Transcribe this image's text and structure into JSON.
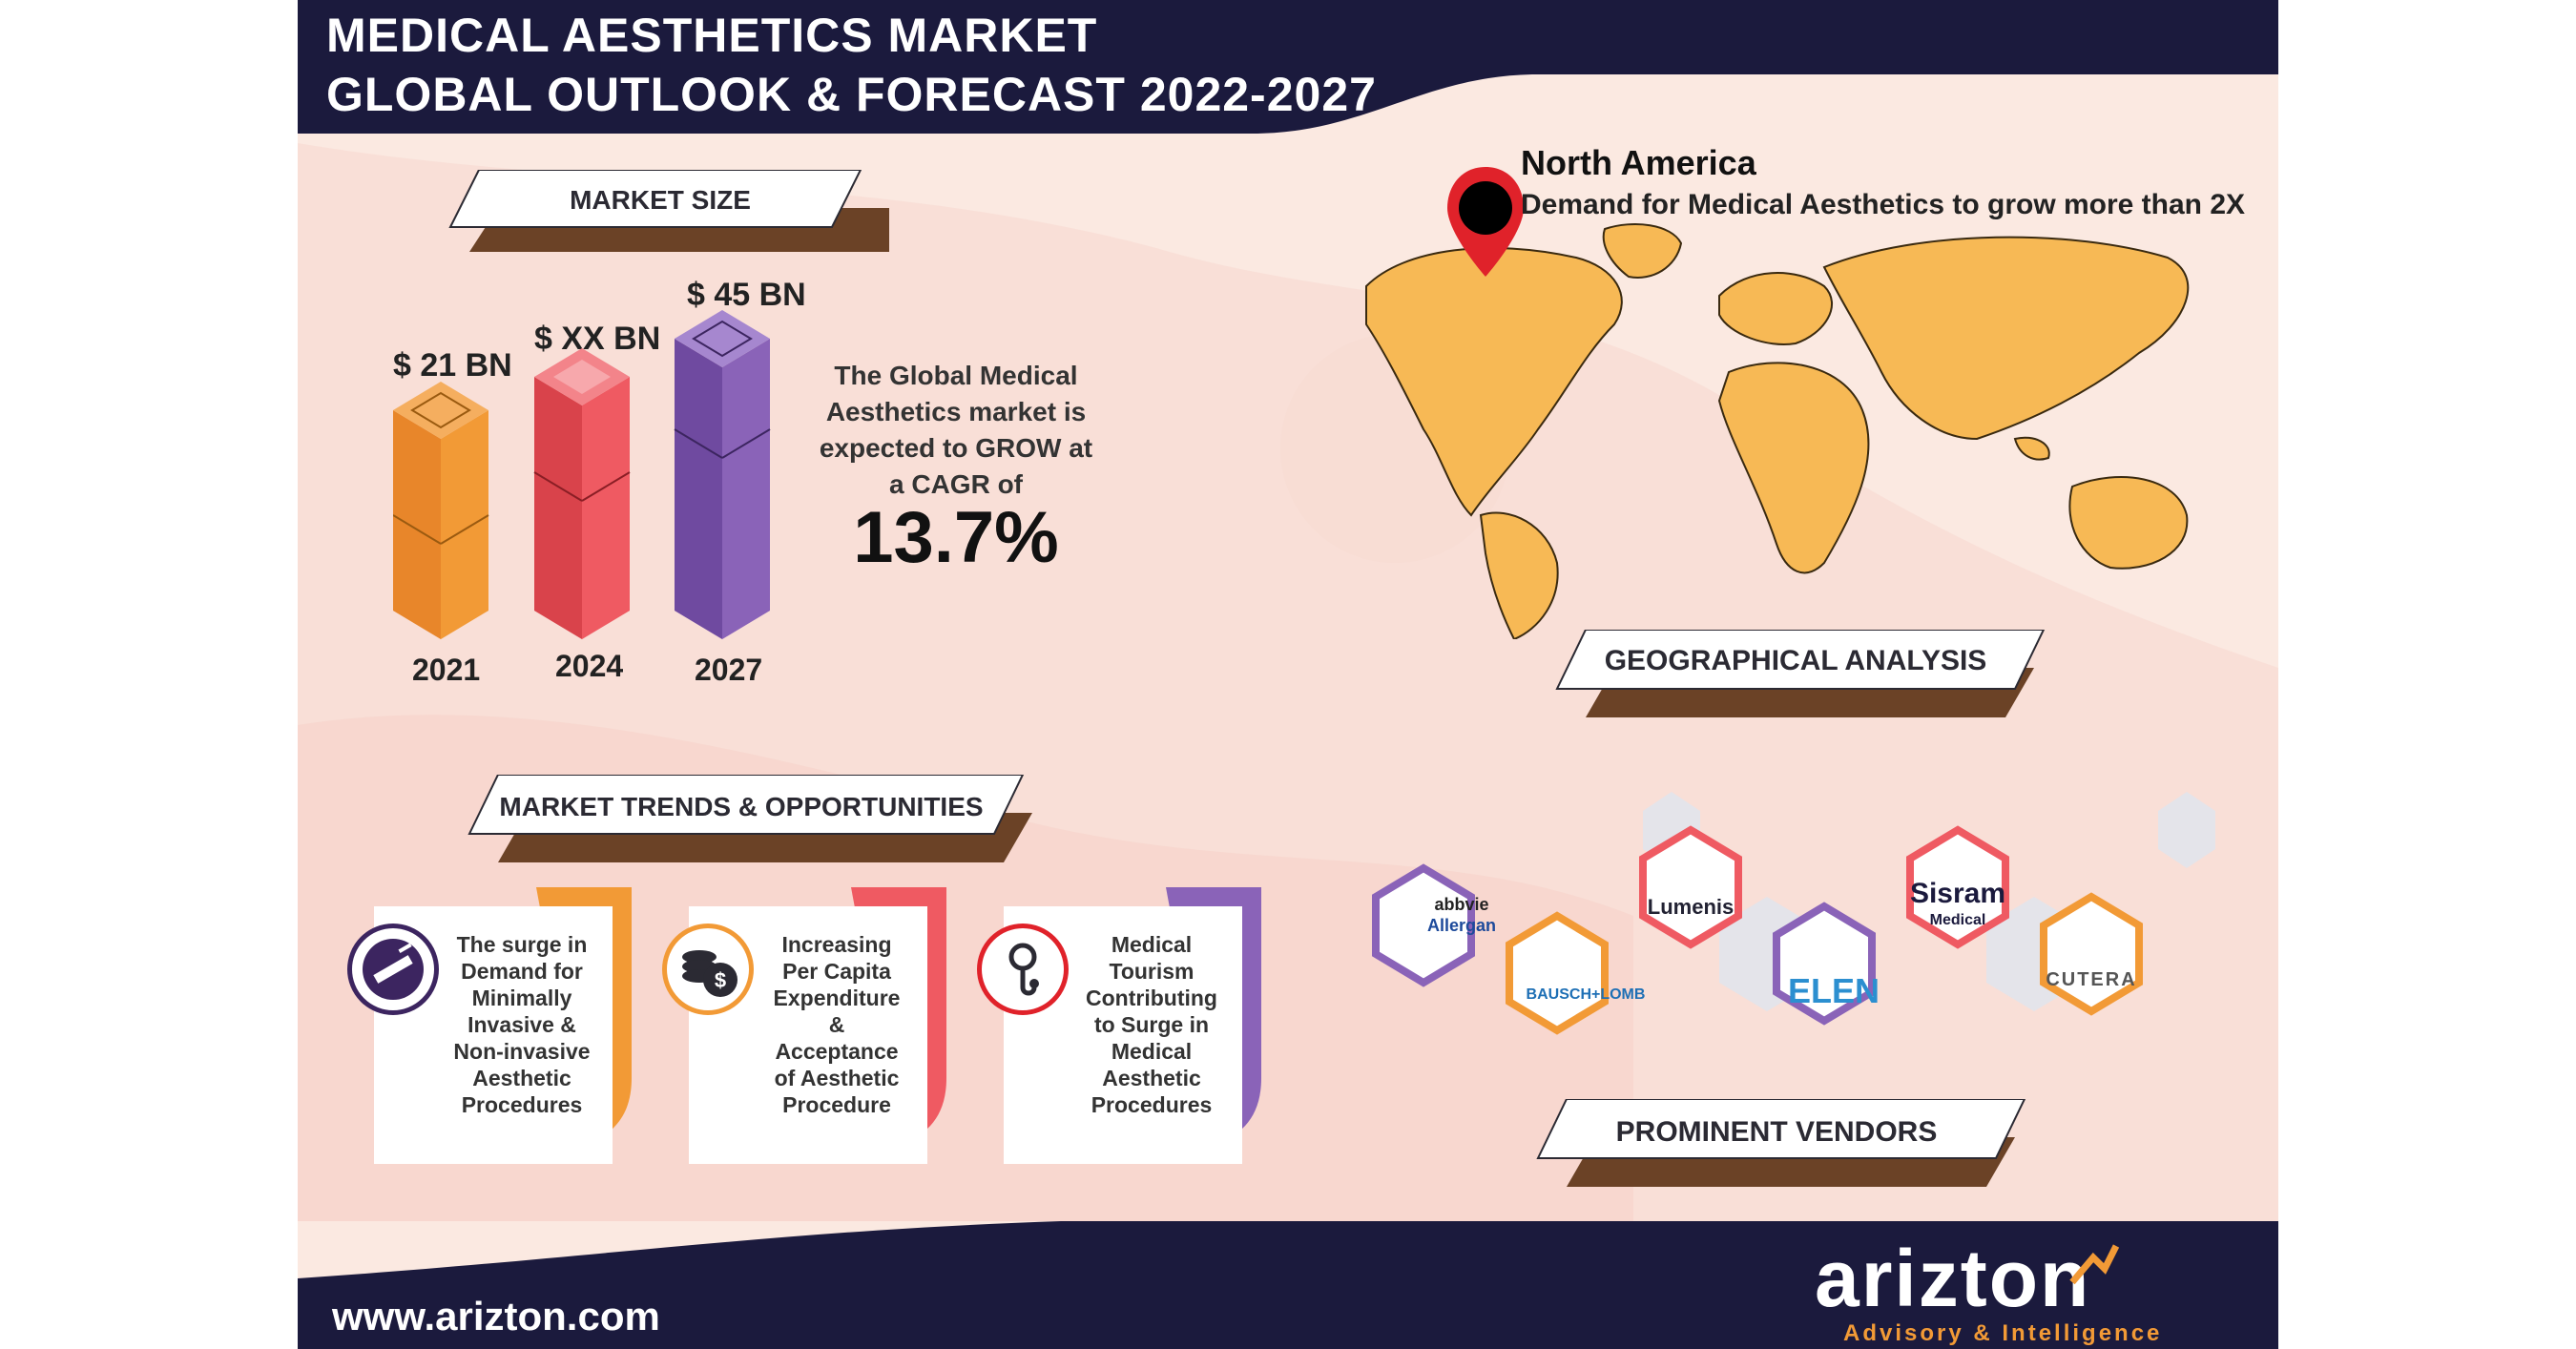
{
  "header": {
    "title_line1": "MEDICAL AESTHETICS MARKET",
    "title_line2": "GLOBAL OUTLOOK & FORECAST 2022-2027"
  },
  "market_size": {
    "heading": "MARKET SIZE",
    "bars": [
      {
        "year": "2021",
        "label": "$ 21 BN",
        "color": "#f29a36"
      },
      {
        "year": "2024",
        "label": "$ XX BN",
        "color": "#ef5a62"
      },
      {
        "year": "2027",
        "label": "$ 45 BN",
        "color": "#8a63b8"
      }
    ],
    "cagr_text": "The Global Medical Aesthetics market is expected to GROW at a CAGR of",
    "cagr_value": "13.7%"
  },
  "geography": {
    "region": "North America",
    "demand_text": "Demand for Medical Aesthetics to grow more than 2X",
    "heading": "GEOGRAPHICAL ANALYSIS",
    "map_color": "#f7b955"
  },
  "trends": {
    "heading": "MARKET TRENDS & OPPORTUNITIES",
    "cards": [
      {
        "text": "The surge in Demand for Minimally Invasive & Non-invasive Aesthetic Procedures",
        "icon": "syringe-hand-icon",
        "color": "#f29a36"
      },
      {
        "text": "Increasing Per Capita Expenditure & Acceptance of Aesthetic Procedure",
        "icon": "coins-dollar-icon",
        "color": "#ef5a62"
      },
      {
        "text": "Medical Tourism Contributing to Surge in Medical Aesthetic Procedures",
        "icon": "stethoscope-icon",
        "color": "#8a63b8"
      }
    ]
  },
  "vendors": {
    "heading": "PROMINENT VENDORS",
    "logos": [
      "abbvie",
      "Allergan",
      "BAUSCH+LOMB",
      "Lumenis",
      "ELEN",
      "Sisram",
      "Medical",
      "CUTERA"
    ]
  },
  "footer": {
    "url": "www.arizton.com",
    "brand": "arizton",
    "tagline": "Advisory & Intelligence",
    "bg_color": "#1b1a3d",
    "accent": "#f29a36"
  }
}
